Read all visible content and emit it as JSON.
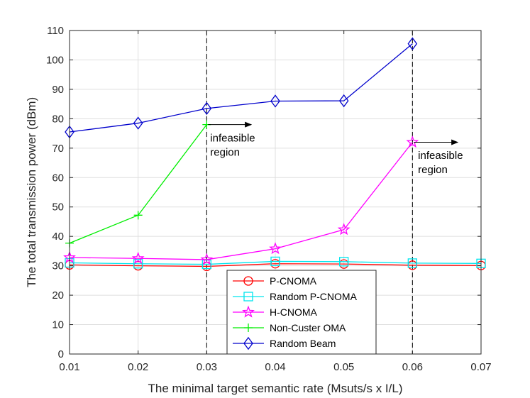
{
  "chart_data": {
    "type": "line",
    "title": "",
    "xlabel": "The minimal target semantic rate (Msuts/s x I/L)",
    "ylabel": "The total transmission power (dBm)",
    "xlim": [
      0.01,
      0.07
    ],
    "ylim": [
      0,
      110
    ],
    "x_ticks": [
      "0.01",
      "0.02",
      "0.03",
      "0.04",
      "0.05",
      "0.06",
      "0.07"
    ],
    "y_ticks": [
      "0",
      "10",
      "20",
      "30",
      "40",
      "50",
      "60",
      "70",
      "80",
      "90",
      "100",
      "110"
    ],
    "grid": true,
    "legend_position": "lower-center",
    "series": [
      {
        "name": "P-CNOMA",
        "color": "#ff0000",
        "marker": "circle",
        "x": [
          0.01,
          0.02,
          0.03,
          0.04,
          0.05,
          0.06,
          0.07
        ],
        "y": [
          30.3,
          30.0,
          29.8,
          30.7,
          30.6,
          30.2,
          30.1
        ]
      },
      {
        "name": "Random P-CNOMA",
        "color": "#00e5ee",
        "marker": "square",
        "x": [
          0.01,
          0.02,
          0.03,
          0.04,
          0.05,
          0.06,
          0.07
        ],
        "y": [
          31.0,
          30.7,
          30.5,
          31.5,
          31.4,
          30.9,
          30.8
        ]
      },
      {
        "name": "H-CNOMA",
        "color": "#ff00ff",
        "marker": "star",
        "x": [
          0.01,
          0.02,
          0.03,
          0.04,
          0.05,
          0.06
        ],
        "y": [
          32.8,
          32.5,
          32.1,
          35.8,
          42.3,
          72.0
        ]
      },
      {
        "name": "Non-Custer OMA",
        "color": "#00ee00",
        "marker": "plus",
        "x": [
          0.01,
          0.02,
          0.03
        ],
        "y": [
          37.7,
          47.2,
          78.0
        ]
      },
      {
        "name": "Random Beam",
        "color": "#0000cc",
        "marker": "diamond",
        "x": [
          0.01,
          0.02,
          0.03,
          0.04,
          0.05,
          0.06
        ],
        "y": [
          75.5,
          78.5,
          83.5,
          86.0,
          86.1,
          105.5
        ]
      }
    ],
    "vlines": [
      0.03,
      0.06
    ],
    "annotations": [
      {
        "line1": "infeasible",
        "line2": "region",
        "x": 0.0302,
        "y": 73.5,
        "arrow_from": [
          0.0302,
          78
        ],
        "arrow_to": [
          0.0365,
          78
        ]
      },
      {
        "line1": "infeasible",
        "line2": "region",
        "x": 0.0605,
        "y": 67.5,
        "arrow_from": [
          0.0602,
          72
        ],
        "arrow_to": [
          0.0666,
          72
        ]
      }
    ]
  }
}
